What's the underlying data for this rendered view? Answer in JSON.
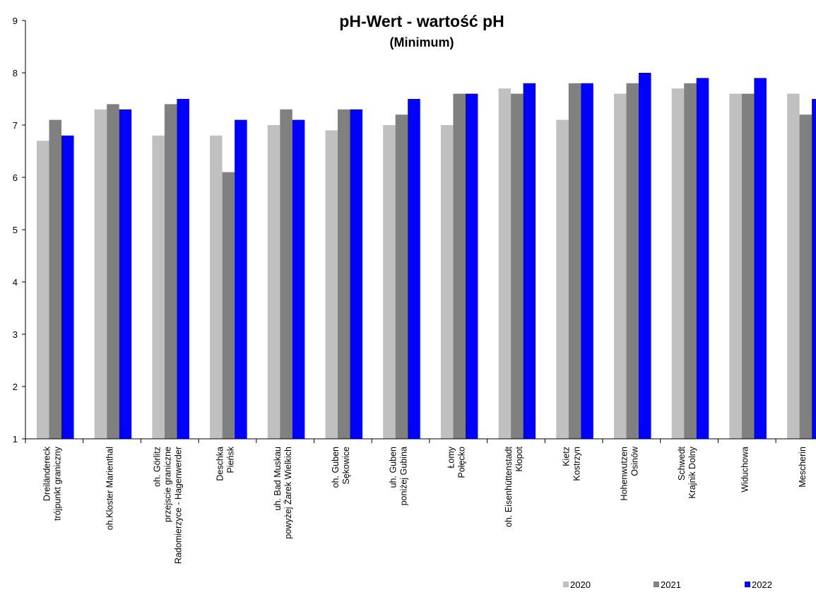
{
  "chart_data": {
    "type": "bar",
    "title": "pH-Wert - wartość pH",
    "subtitle": "(Minimum)",
    "xlabel": "",
    "ylabel": "",
    "ylim": [
      1,
      9
    ],
    "yticks": [
      1,
      2,
      3,
      4,
      5,
      6,
      7,
      8,
      9
    ],
    "grid": false,
    "legend_position": "bottom-right",
    "categories": [
      [
        "Dreiländereck",
        "trójpunkt graniczny"
      ],
      [
        "oh.Kloster Marienthal"
      ],
      [
        "oh. Görlitz",
        "przejscie graniczne",
        "Radomierzyce - Hagenwerder"
      ],
      [
        "Deschka",
        "Pieńsk"
      ],
      [
        "uh. Bad Muskau",
        "powyżej Żarek Wielkich"
      ],
      [
        "oh. Guben",
        "Sękowice"
      ],
      [
        "uh. Guben",
        "poniżej Gubina"
      ],
      [
        "Łomy",
        "Połęcko"
      ],
      [
        "oh. Eisenhüttenstadt",
        "Kłopot"
      ],
      [
        "Kietz",
        "Kostrzyn"
      ],
      [
        "Hohenwutzen",
        "Osinów"
      ],
      [
        "Schwedt",
        "Krajnik Dolny"
      ],
      [
        "Widuchowa"
      ],
      [
        "Mescherin"
      ]
    ],
    "series": [
      {
        "name": "2020",
        "color": "#c0c0c0",
        "values": [
          6.7,
          7.3,
          6.8,
          6.8,
          7.0,
          6.9,
          7.0,
          7.0,
          7.7,
          7.1,
          7.6,
          7.7,
          7.6,
          7.6
        ]
      },
      {
        "name": "2021",
        "color": "#808080",
        "values": [
          7.1,
          7.4,
          7.4,
          6.1,
          7.3,
          7.3,
          7.2,
          7.6,
          7.6,
          7.8,
          7.8,
          7.8,
          7.6,
          7.2
        ]
      },
      {
        "name": "2022",
        "color": "#0000ff",
        "values": [
          6.8,
          7.3,
          7.5,
          7.1,
          7.1,
          7.3,
          7.5,
          7.6,
          7.8,
          7.8,
          8.0,
          7.9,
          7.9,
          7.5
        ]
      }
    ]
  }
}
